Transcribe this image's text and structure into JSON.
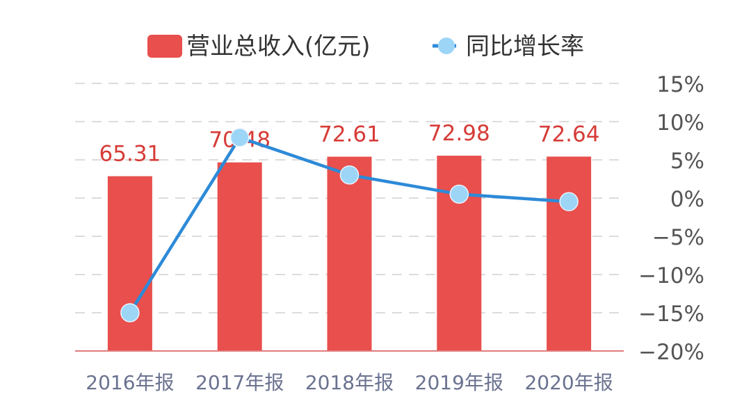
{
  "chart_data": {
    "type": "bar+line",
    "categories": [
      "2016年报",
      "2017年报",
      "2018年报",
      "2019年报",
      "2020年报"
    ],
    "series": [
      {
        "name": "营业总收入(亿元)",
        "type": "bar",
        "axis": "left",
        "values": [
          65.31,
          70.48,
          72.61,
          72.98,
          72.64
        ],
        "data_labels": [
          "65.31",
          "70.48",
          "72.61",
          "72.98",
          "72.64"
        ],
        "color": "#e84f4d"
      },
      {
        "name": "同比增长率",
        "type": "line",
        "axis": "right",
        "values": [
          -15.0,
          7.92,
          3.02,
          0.51,
          -0.47
        ],
        "color": "#2d8ad8",
        "marker_color": "#9dd5f7"
      }
    ],
    "left_axis": {
      "visible": false,
      "ylim": [
        0,
        100
      ]
    },
    "right_axis": {
      "ylim": [
        -20,
        15
      ],
      "ticks": [
        15,
        10,
        5,
        0,
        -5,
        -10,
        -15,
        -20
      ],
      "tick_labels": [
        "15%",
        "10%",
        "5%",
        "0%",
        "−5%",
        "−10%",
        "−15%",
        "−20%"
      ]
    },
    "grid": true,
    "legend_position": "top",
    "label_color": "#d63b37",
    "axis_label_color": "#6a7290"
  }
}
